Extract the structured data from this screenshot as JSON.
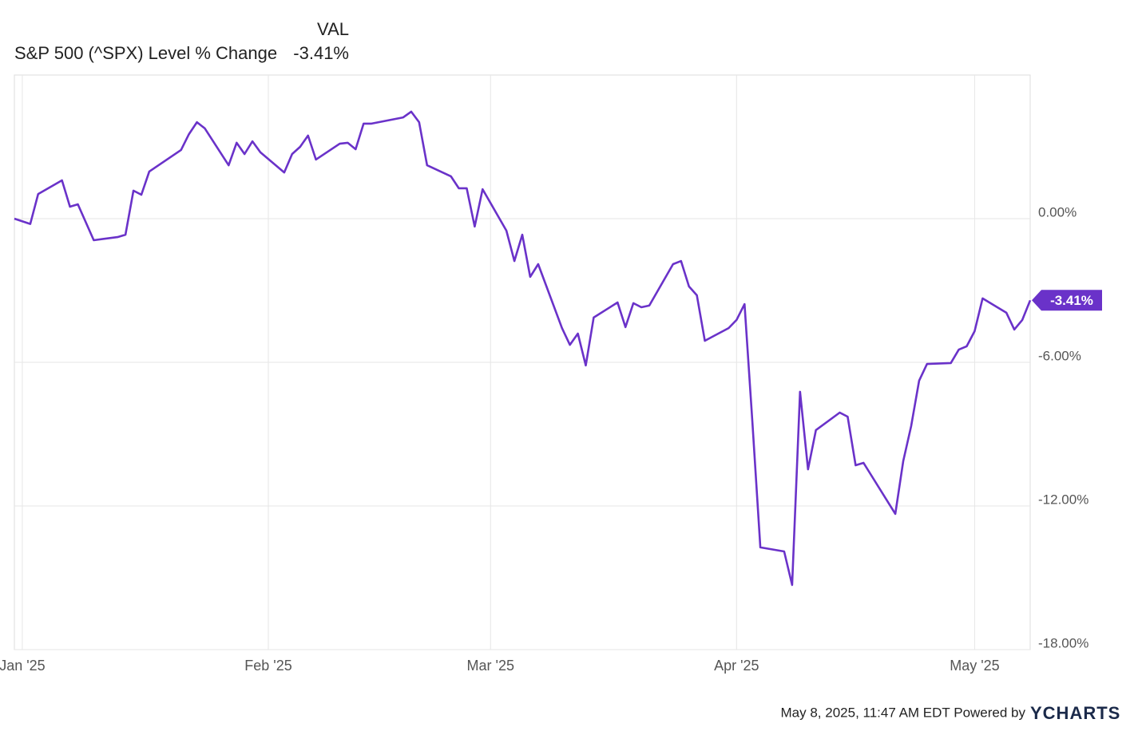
{
  "chart_data": {
    "type": "line",
    "header": {
      "column": "VAL",
      "value": "-3.41%"
    },
    "footer": {
      "timestamp": "May 8, 2025, 11:47 AM EDT Powered by",
      "brand": "YCHARTS"
    },
    "x": [
      0,
      2,
      3,
      6,
      7,
      8,
      10,
      13,
      14,
      15,
      16,
      17,
      21,
      22,
      23,
      24,
      27,
      28,
      29,
      30,
      31,
      34,
      35,
      36,
      37,
      38,
      41,
      42,
      43,
      44,
      45,
      49,
      50,
      51,
      52,
      55,
      56,
      57,
      58,
      59,
      62,
      63,
      64,
      65,
      66,
      69,
      70,
      71,
      72,
      73,
      76,
      77,
      78,
      79,
      80,
      83,
      84,
      85,
      86,
      87,
      90,
      91,
      92,
      93,
      94,
      97,
      98,
      99,
      100,
      101,
      104,
      105,
      106,
      107,
      111,
      112,
      113,
      114,
      115,
      118,
      119,
      120,
      121,
      122,
      125,
      126,
      127,
      128
    ],
    "series": [
      {
        "name": "S&P 500 (^SPX) Level % Change",
        "color": "#6a32c9",
        "values": [
          0,
          -0.22,
          1.03,
          1.6,
          0.5,
          0.6,
          -0.9,
          -0.77,
          -0.67,
          1.17,
          1.0,
          1.97,
          2.87,
          3.53,
          4.03,
          3.77,
          2.23,
          3.17,
          2.7,
          3.23,
          2.77,
          1.93,
          2.7,
          3.0,
          3.47,
          2.47,
          3.13,
          3.17,
          2.9,
          3.97,
          3.97,
          4.23,
          4.47,
          4.03,
          2.23,
          1.77,
          1.27,
          1.27,
          -0.33,
          1.23,
          -0.5,
          -1.77,
          -0.67,
          -2.43,
          -1.9,
          -4.57,
          -5.27,
          -4.8,
          -6.13,
          -4.13,
          -3.5,
          -4.53,
          -3.53,
          -3.7,
          -3.63,
          -1.9,
          -1.77,
          -2.83,
          -3.2,
          -5.1,
          -4.57,
          -4.23,
          -3.57,
          -8.53,
          -13.73,
          -13.9,
          -15.3,
          -7.23,
          -10.47,
          -8.83,
          -8.1,
          -8.27,
          -10.3,
          -10.2,
          -12.33,
          -10.13,
          -8.67,
          -6.77,
          -6.07,
          -6.03,
          -5.47,
          -5.33,
          -4.7,
          -3.33,
          -3.93,
          -4.63,
          -4.23,
          -3.41
        ]
      }
    ],
    "xlim": [
      0,
      128
    ],
    "xticks": [
      {
        "value": 1,
        "label": "Jan '25"
      },
      {
        "value": 32,
        "label": "Feb '25"
      },
      {
        "value": 60,
        "label": "Mar '25"
      },
      {
        "value": 91,
        "label": "Apr '25"
      },
      {
        "value": 121,
        "label": "May '25"
      }
    ],
    "ylim": [
      -18,
      6
    ],
    "yticks": [
      {
        "value": 0,
        "label": "0.00%"
      },
      {
        "value": -6,
        "label": "-6.00%"
      },
      {
        "value": -12,
        "label": "-12.00%"
      },
      {
        "value": -18,
        "label": "-18.00%"
      }
    ],
    "grid": true
  }
}
